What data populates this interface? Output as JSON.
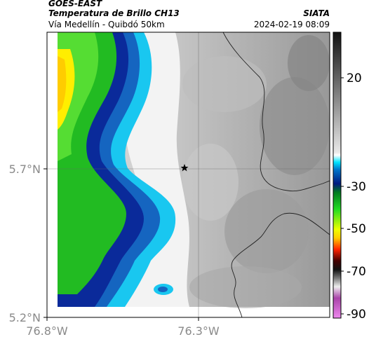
{
  "header": {
    "product": "GOES-EAST",
    "title": "Temperatura de Brillo CH13",
    "subtitle": "Vía Medellín - Quibdó 50km",
    "brand": "SIATA",
    "datetime": "2024-02-19 08:09"
  },
  "map": {
    "lat_ticks": [
      "5.7°N",
      "5.2°N"
    ],
    "lon_ticks": [
      "76.8°W",
      "76.3°W"
    ],
    "marker": "star-marker"
  },
  "colorbar": {
    "ticks": [
      "20",
      "-30",
      "-50",
      "-70",
      "-90"
    ]
  },
  "colors": {
    "cold_cloud_yellow": "#ffee00",
    "cloud_green": "#22bb22",
    "cloud_blue": "#0a2a9a",
    "cloud_cyan": "#19c7f0",
    "clear_white": "#f2f2f2",
    "ground_gray": "#9a9a9a"
  }
}
